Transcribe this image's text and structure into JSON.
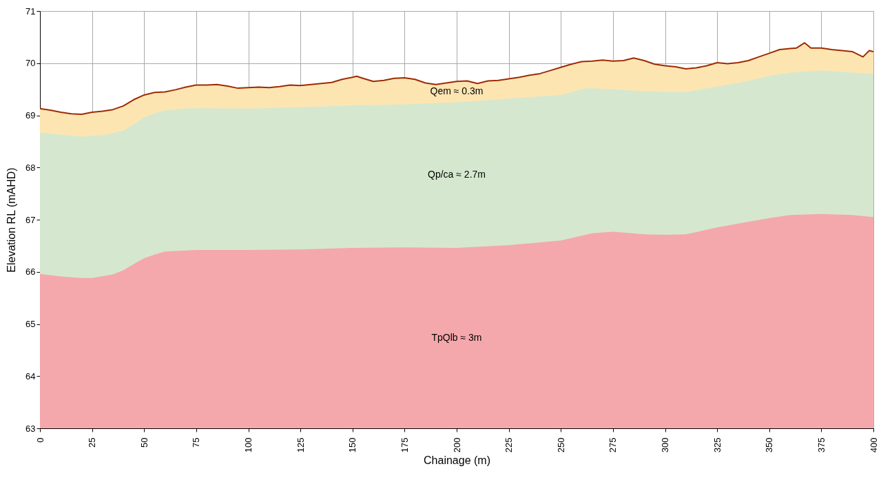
{
  "chart_data": {
    "type": "area",
    "xlabel": "Chainage (m)",
    "ylabel": "Elevation RL (mAHD)",
    "xlim": [
      0,
      400
    ],
    "xticks": [
      0,
      25,
      50,
      75,
      100,
      125,
      150,
      175,
      200,
      225,
      250,
      275,
      300,
      325,
      350,
      375,
      400
    ],
    "ylim": [
      63,
      71
    ],
    "yticks": [
      63,
      64,
      65,
      66,
      67,
      68,
      69,
      70,
      71
    ],
    "grid": true,
    "series": [
      {
        "color": "#fde5b2",
        "x": [
          0,
          5,
          10,
          15,
          20,
          25,
          30,
          35,
          40,
          45,
          50,
          55,
          60,
          65,
          70,
          75,
          80,
          85,
          90,
          95,
          100,
          105,
          110,
          115,
          120,
          125,
          130,
          135,
          140,
          145,
          150,
          152,
          155,
          160,
          165,
          170,
          175,
          180,
          185,
          190,
          195,
          200,
          205,
          210,
          215,
          220,
          225,
          230,
          235,
          240,
          245,
          250,
          255,
          260,
          265,
          270,
          275,
          280,
          285,
          290,
          295,
          300,
          305,
          310,
          315,
          320,
          325,
          330,
          335,
          340,
          345,
          350,
          355,
          360,
          363,
          367,
          370,
          375,
          380,
          385,
          390,
          395,
          398,
          400
        ],
        "values": [
          69.13,
          69.1,
          69.06,
          69.03,
          69.02,
          69.06,
          69.08,
          69.11,
          69.18,
          69.3,
          69.39,
          69.44,
          69.45,
          69.49,
          69.54,
          69.58,
          69.58,
          69.59,
          69.56,
          69.52,
          69.53,
          69.54,
          69.53,
          69.55,
          69.58,
          69.57,
          69.59,
          69.61,
          69.63,
          69.69,
          69.73,
          69.75,
          69.71,
          69.65,
          69.67,
          69.71,
          69.72,
          69.69,
          69.62,
          69.59,
          69.62,
          69.65,
          69.66,
          69.61,
          69.66,
          69.67,
          69.7,
          69.73,
          69.77,
          69.8,
          69.86,
          69.92,
          69.98,
          70.03,
          70.04,
          70.06,
          70.04,
          70.05,
          70.1,
          70.05,
          69.98,
          69.95,
          69.93,
          69.89,
          69.91,
          69.95,
          70.01,
          69.99,
          70.01,
          70.05,
          70.12,
          70.19,
          70.26,
          70.28,
          70.29,
          70.39,
          70.29,
          70.29,
          70.26,
          70.24,
          70.22,
          70.12,
          70.24,
          70.22
        ]
      },
      {
        "color": "#d5e8cf",
        "x": [
          0,
          10,
          20,
          25,
          30,
          35,
          40,
          45,
          50,
          55,
          60,
          70,
          75,
          100,
          125,
          150,
          175,
          200,
          225,
          250,
          262,
          275,
          287,
          300,
          310,
          325,
          340,
          350,
          360,
          375,
          390,
          400
        ],
        "values": [
          68.67,
          68.63,
          68.59,
          68.61,
          68.62,
          68.66,
          68.71,
          68.83,
          68.96,
          69.04,
          69.1,
          69.13,
          69.14,
          69.13,
          69.16,
          69.19,
          69.21,
          69.25,
          69.32,
          69.39,
          69.52,
          69.5,
          69.47,
          69.45,
          69.45,
          69.55,
          69.66,
          69.76,
          69.82,
          69.86,
          69.82,
          69.8
        ]
      },
      {
        "color": "#f5a8ac",
        "x": [
          0,
          10,
          20,
          25,
          35,
          40,
          45,
          50,
          55,
          60,
          75,
          100,
          125,
          150,
          175,
          200,
          225,
          250,
          265,
          275,
          290,
          300,
          310,
          325,
          340,
          350,
          360,
          375,
          390,
          400
        ],
        "values": [
          65.96,
          65.91,
          65.88,
          65.88,
          65.95,
          66.03,
          66.15,
          66.26,
          66.33,
          66.39,
          66.42,
          66.42,
          66.43,
          66.46,
          66.47,
          66.46,
          66.51,
          66.6,
          66.74,
          66.77,
          66.72,
          66.71,
          66.72,
          66.85,
          66.96,
          67.03,
          67.09,
          67.11,
          67.09,
          67.05
        ]
      }
    ],
    "annotations": [
      "Qem ≈ 0.3m",
      "Qp/ca ≈ 2.7m",
      "TpQlb ≈ 3m"
    ]
  }
}
